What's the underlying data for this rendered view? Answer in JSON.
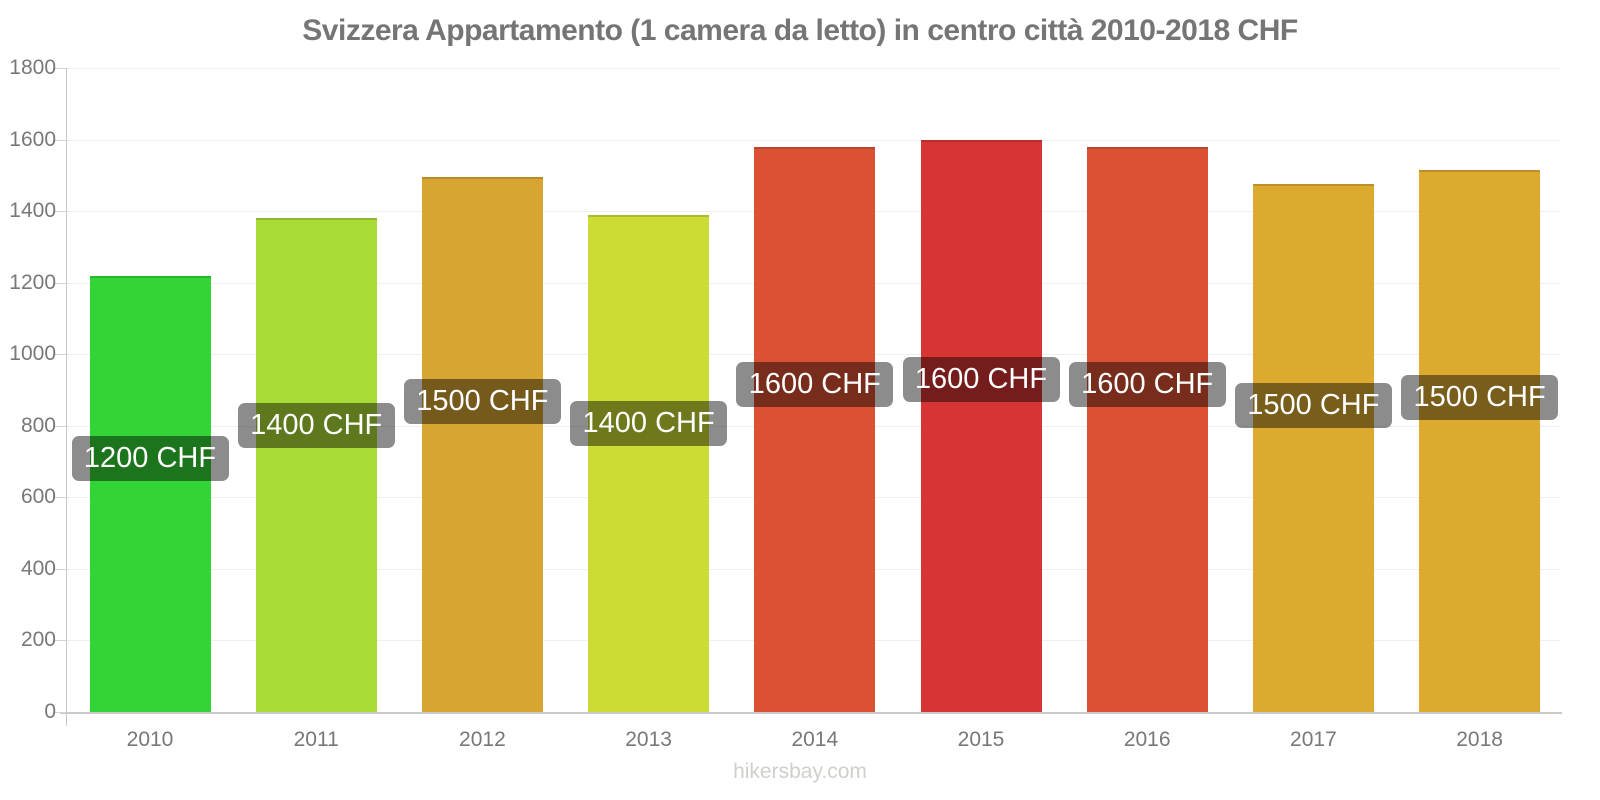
{
  "page": {
    "title": "Svizzera Appartamento (1 camera da letto) in centro città 2010-2018 CHF",
    "source": "hikersbay.com"
  },
  "chart_data": {
    "type": "bar",
    "title": "Svizzera Appartamento (1 camera da letto) in centro città 2010-2018 CHF",
    "categories": [
      "2010",
      "2011",
      "2012",
      "2013",
      "2014",
      "2015",
      "2016",
      "2017",
      "2018"
    ],
    "values": [
      1220,
      1380,
      1495,
      1390,
      1580,
      1600,
      1580,
      1475,
      1515
    ],
    "bar_labels": [
      "1200 CHF",
      "1400 CHF",
      "1500 CHF",
      "1400 CHF",
      "1600 CHF",
      "1600 CHF",
      "1600 CHF",
      "1500 CHF",
      "1500 CHF"
    ],
    "bar_colors": [
      "#33d435",
      "#a9db36",
      "#d8a432",
      "#cbdc34",
      "#da5233",
      "#d63534",
      "#da5233",
      "#ddaa30",
      "#ddaa30"
    ],
    "ylim": [
      0,
      1800
    ],
    "yticks": [
      0,
      200,
      400,
      600,
      800,
      1000,
      1200,
      1400,
      1600,
      1800
    ],
    "xlabel": "",
    "ylabel": "",
    "grid": true,
    "legend": false,
    "label_box_color": "rgba(0,0,0,0.45)",
    "label_text_color": "#ffffff",
    "source": "hikersbay.com"
  }
}
